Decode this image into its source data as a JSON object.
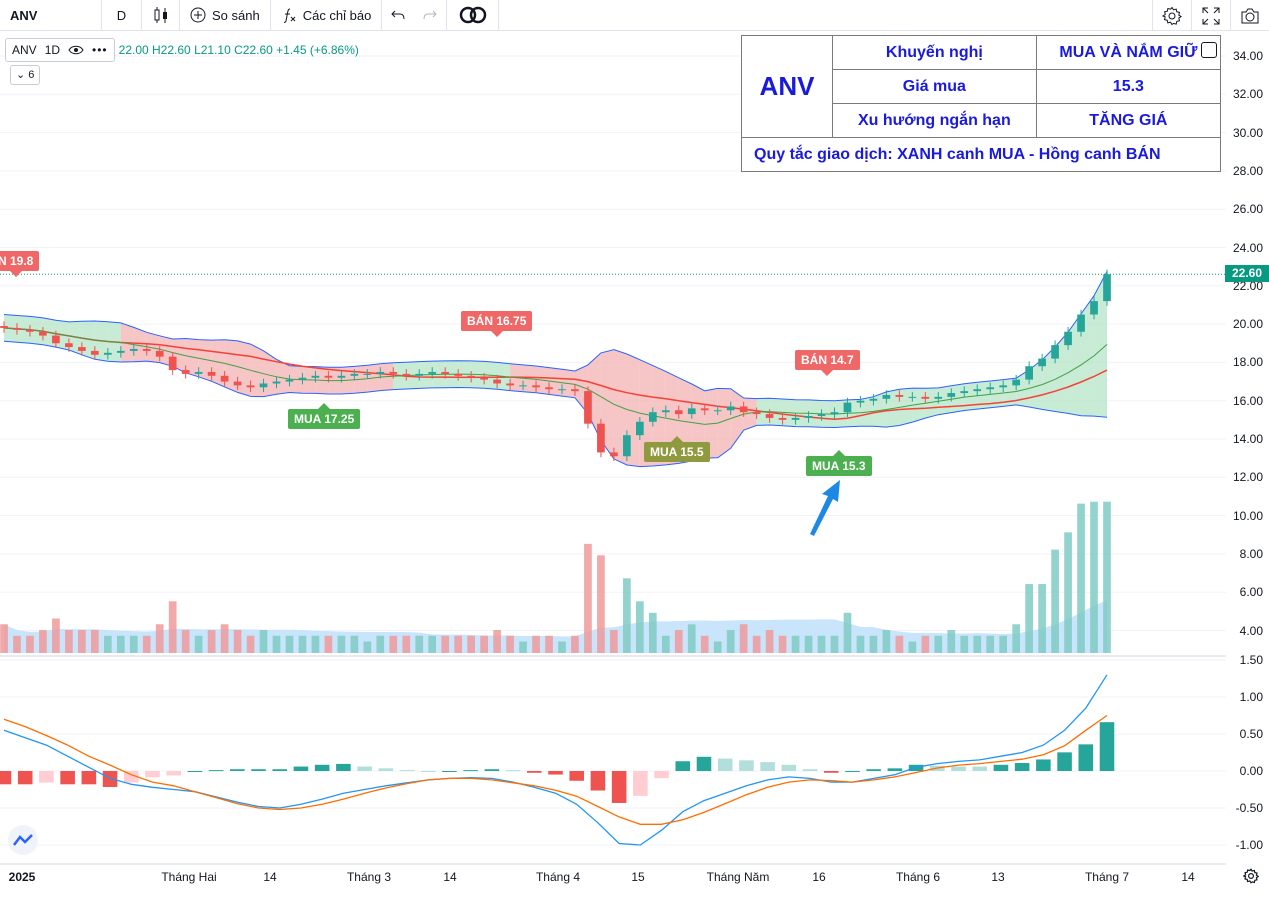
{
  "toolbar": {
    "symbol": "ANV",
    "interval": "D",
    "compare_label": "So sánh",
    "indicators_label": "Các chỉ báo"
  },
  "legend": {
    "symbol": "ANV",
    "interval": "1D",
    "open_label": "22.00",
    "high_label": "H22.60",
    "low_label": "L21.10",
    "close_label": "C22.60",
    "change_label": "+1.45 (+6.86%)",
    "collapsed_count": "6"
  },
  "info_table": {
    "symbol": "ANV",
    "rows": [
      {
        "label": "Khuyến nghị",
        "value": "MUA VÀ NẮM GIỮ"
      },
      {
        "label": "Giá mua",
        "value": "15.3"
      },
      {
        "label": "Xu hướng ngắn hạn",
        "value": "TĂNG GIÁ"
      }
    ],
    "rule": "Quy tắc giao dịch: XANH canh MUA - Hồng canh BÁN"
  },
  "price_axis": [
    "34.00",
    "32.00",
    "30.00",
    "28.00",
    "26.00",
    "24.00",
    "22.00",
    "20.00",
    "18.00",
    "16.00",
    "14.00",
    "12.00",
    "10.00",
    "8.00",
    "6.00",
    "4.00"
  ],
  "macd_axis": [
    "1.50",
    "1.00",
    "0.50",
    "0.00",
    "-0.50",
    "-1.00"
  ],
  "last_price": "22.60",
  "time_axis": [
    "2025",
    "Tháng Hai",
    "14",
    "Tháng 3",
    "14",
    "Tháng 4",
    "15",
    "Tháng Năm",
    "16",
    "Tháng 6",
    "13",
    "Tháng 7",
    "14"
  ],
  "signals": [
    {
      "text": "N 19.8",
      "kind": "sell"
    },
    {
      "text": "BÁN 16.75",
      "kind": "sell"
    },
    {
      "text": "MUA 17.25",
      "kind": "buy"
    },
    {
      "text": "MUA 15.5",
      "kind": "buy"
    },
    {
      "text": "BÁN 14.7",
      "kind": "sell"
    },
    {
      "text": "MUA 15.3",
      "kind": "buy"
    }
  ],
  "colors": {
    "up": "#26a69a",
    "down": "#ef5350",
    "band_bear": "#f4b7b7",
    "band_bull": "#b9e6c9",
    "table_text": "#1a1adc",
    "last_price": "#089981"
  },
  "chart_data": {
    "type": "candlestick",
    "symbol": "ANV",
    "interval": "1D",
    "series": [
      {
        "name": "close",
        "values": [
          19.8,
          19.7,
          19.6,
          19.4,
          19.0,
          18.8,
          18.6,
          18.4,
          18.5,
          18.6,
          18.7,
          18.6,
          18.3,
          17.6,
          17.4,
          17.5,
          17.3,
          17.0,
          16.8,
          16.7,
          16.9,
          17.0,
          17.1,
          17.2,
          17.3,
          17.2,
          17.3,
          17.4,
          17.4,
          17.5,
          17.4,
          17.3,
          17.4,
          17.5,
          17.4,
          17.3,
          17.2,
          17.1,
          16.9,
          16.8,
          16.8,
          16.7,
          16.6,
          16.6,
          16.5,
          14.8,
          13.3,
          13.1,
          14.2,
          14.9,
          15.4,
          15.5,
          15.3,
          15.6,
          15.5,
          15.5,
          15.7,
          15.4,
          15.3,
          15.1,
          15.0,
          15.1,
          15.2,
          15.3,
          15.4,
          15.9,
          16.0,
          16.1,
          16.3,
          16.2,
          16.2,
          16.1,
          16.2,
          16.4,
          16.5,
          16.6,
          16.7,
          16.8,
          17.1,
          17.8,
          18.2,
          18.9,
          19.6,
          20.5,
          21.2,
          22.6
        ]
      }
    ],
    "volume_ylim": [
      3.0,
      11.0
    ],
    "price_ylim": [
      10.5,
      35.0
    ],
    "macd": {
      "ylim": [
        -1.2,
        1.6
      ],
      "macd_line": [
        0.55,
        0.45,
        0.35,
        0.2,
        0.05,
        -0.1,
        -0.18,
        -0.22,
        -0.25,
        -0.28,
        -0.35,
        -0.42,
        -0.48,
        -0.5,
        -0.45,
        -0.38,
        -0.3,
        -0.25,
        -0.2,
        -0.16,
        -0.12,
        -0.1,
        -0.09,
        -0.1,
        -0.15,
        -0.22,
        -0.3,
        -0.45,
        -0.7,
        -0.98,
        -1.0,
        -0.8,
        -0.55,
        -0.4,
        -0.3,
        -0.2,
        -0.12,
        -0.08,
        -0.1,
        -0.15,
        -0.15,
        -0.1,
        -0.05,
        0.05,
        0.1,
        0.13,
        0.15,
        0.2,
        0.25,
        0.35,
        0.55,
        0.85,
        1.3
      ],
      "signal_line": [
        0.7,
        0.6,
        0.48,
        0.35,
        0.2,
        0.08,
        -0.05,
        -0.15,
        -0.2,
        -0.28,
        -0.36,
        -0.44,
        -0.5,
        -0.52,
        -0.5,
        -0.45,
        -0.38,
        -0.3,
        -0.23,
        -0.17,
        -0.12,
        -0.1,
        -0.1,
        -0.12,
        -0.16,
        -0.2,
        -0.26,
        -0.34,
        -0.48,
        -0.62,
        -0.72,
        -0.72,
        -0.66,
        -0.56,
        -0.44,
        -0.32,
        -0.22,
        -0.15,
        -0.12,
        -0.13,
        -0.15,
        -0.12,
        -0.08,
        -0.02,
        0.04,
        0.08,
        0.1,
        0.13,
        0.16,
        0.22,
        0.34,
        0.55,
        0.75
      ]
    }
  }
}
